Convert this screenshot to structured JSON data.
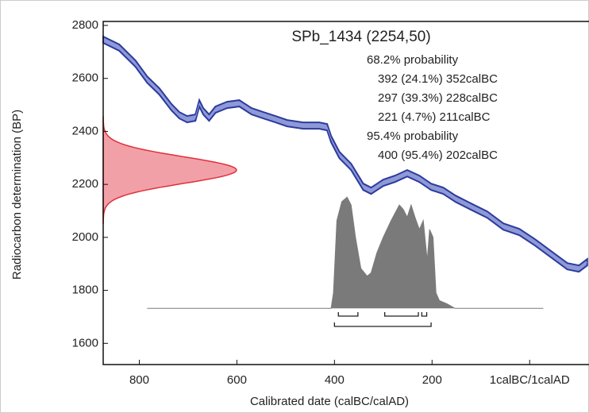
{
  "chart_data": {
    "type": "calibration",
    "title": "SPb_1434 (2254,50)",
    "xlabel": "Calibrated date (calBC/calAD)",
    "ylabel": "Radiocarbon determination (BP)",
    "xlim": [
      874,
      -120
    ],
    "xticks": [
      800,
      600,
      400,
      200,
      {
        "value": 0,
        "label": "1calBC/1calAD"
      }
    ],
    "ylim": [
      1520,
      2815
    ],
    "yticks": [
      1600,
      1800,
      2000,
      2200,
      2400,
      2600,
      2800
    ],
    "curve": {
      "color": "#2c3b9c",
      "fill": "#8e99d8",
      "error": 12,
      "x": [
        874,
        841,
        808,
        784,
        759,
        734,
        718,
        702,
        685,
        677,
        669,
        657,
        644,
        620,
        595,
        570,
        546,
        521,
        497,
        464,
        431,
        415,
        407,
        390,
        366,
        341,
        325,
        300,
        276,
        251,
        226,
        202,
        177,
        152,
        120,
        87,
        54,
        21,
        -11,
        -44,
        -77,
        -101,
        -118
      ],
      "y": [
        2746,
        2716,
        2656,
        2596,
        2551,
        2491,
        2461,
        2446,
        2452,
        2506,
        2476,
        2452,
        2482,
        2500,
        2506,
        2476,
        2461,
        2446,
        2431,
        2422,
        2422,
        2416,
        2371,
        2311,
        2266,
        2191,
        2176,
        2206,
        2221,
        2242,
        2221,
        2191,
        2176,
        2146,
        2116,
        2086,
        2041,
        2020,
        1981,
        1936,
        1891,
        1882,
        1906
      ]
    },
    "measurement": {
      "mean": 2254,
      "sd": 50,
      "color": "#e0303a",
      "fill": "#f2a0a8"
    },
    "posterior": {
      "color": "#7a7a7a",
      "baseline": 1732,
      "x": [
        784,
        407,
        402,
        395,
        385,
        374,
        366,
        357,
        346,
        333,
        325,
        313,
        300,
        284,
        267,
        259,
        251,
        243,
        235,
        226,
        218,
        210,
        205,
        198,
        192,
        185,
        169,
        153,
        -28
      ],
      "density": [
        0,
        0,
        0.14,
        0.79,
        0.96,
        1,
        0.93,
        0.64,
        0.36,
        0.29,
        0.32,
        0.5,
        0.64,
        0.79,
        0.93,
        0.89,
        0.82,
        0.93,
        0.82,
        0.71,
        0.79,
        0.43,
        0.71,
        0.64,
        0.14,
        0.07,
        0.04,
        0,
        0
      ]
    },
    "ranges": [
      {
        "label": "68.2% probability",
        "intervals": [
          {
            "from": 392,
            "to": 352,
            "label": "392 (24.1%) 352calBC"
          },
          {
            "from": 297,
            "to": 228,
            "label": "297 (39.3%) 228calBC"
          },
          {
            "from": 221,
            "to": 211,
            "label": "221 (4.7%) 211calBC"
          }
        ]
      },
      {
        "label": "95.4% probability",
        "intervals": [
          {
            "from": 400,
            "to": 202,
            "label": "400 (95.4%) 202calBC"
          }
        ]
      }
    ]
  }
}
